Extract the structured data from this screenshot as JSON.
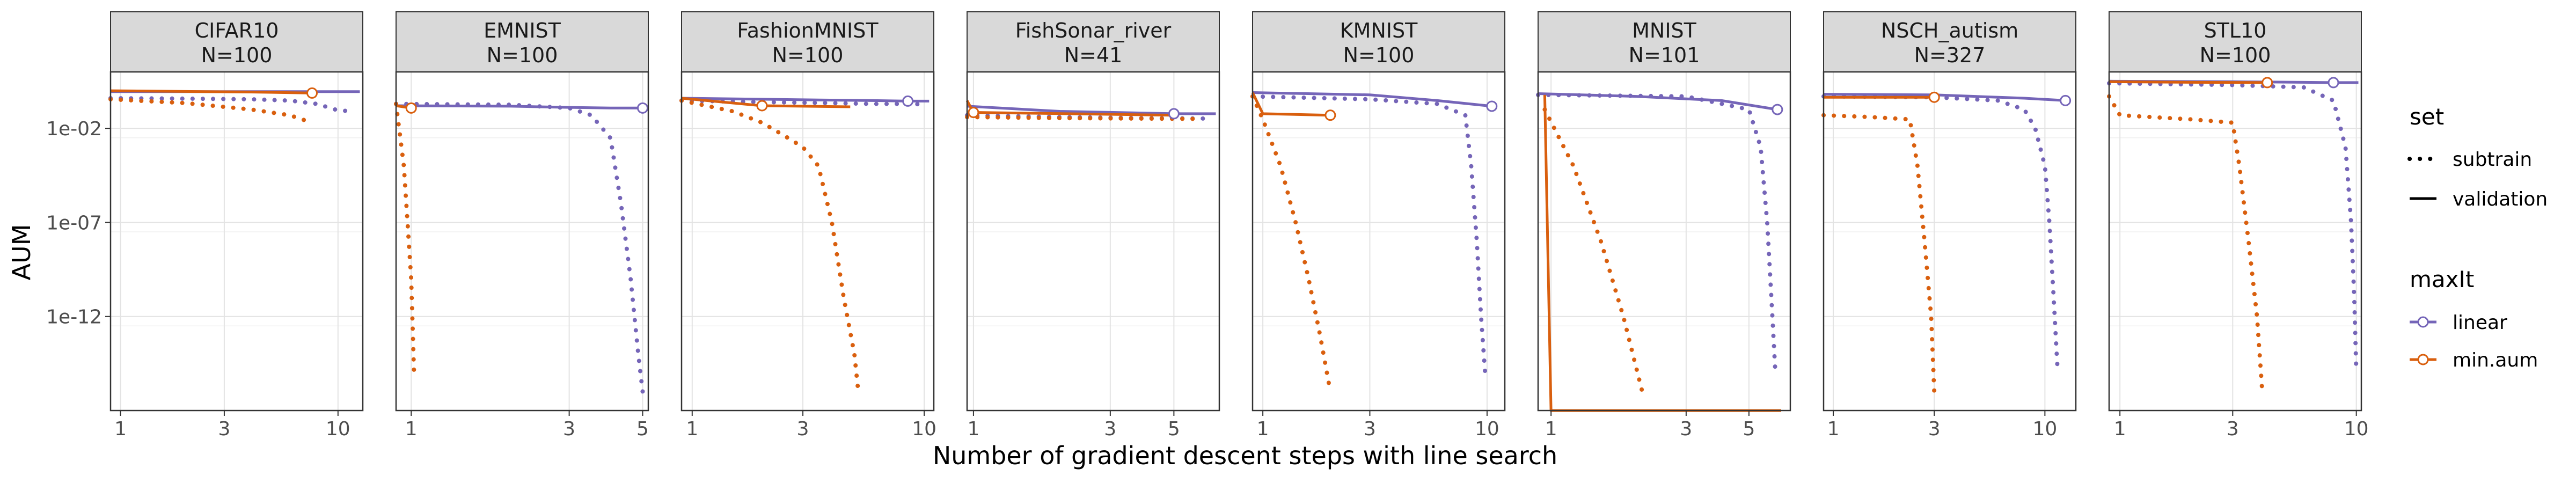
{
  "chart_data": {
    "type": "line",
    "xlabel": "Number of gradient descent steps with line search",
    "ylabel": "AUM",
    "y_scale": "log",
    "x_scale": "log",
    "y_ticks": [
      0.01,
      1e-07,
      1e-12
    ],
    "y_tick_labels": [
      "1e-02",
      "1e-07",
      "1e-12"
    ],
    "ylim": [
      1e-17,
      10
    ],
    "legend": {
      "set_title": "set",
      "set_entries": [
        {
          "label": "subtrain",
          "style": "dotted"
        },
        {
          "label": "validation",
          "style": "solid"
        }
      ],
      "maxit_title": "maxIt",
      "maxit_entries": [
        {
          "label": "linear",
          "color": "#7565b8"
        },
        {
          "label": "min.aum",
          "color": "#d95f0e"
        }
      ]
    },
    "colors": {
      "linear": "#7565b8",
      "min.aum": "#d95f0e"
    },
    "panels": [
      {
        "title": "CIFAR10",
        "subtitle": "N=100",
        "xlim": [
          0.9,
          13
        ],
        "x_ticks": [
          1,
          3,
          10
        ],
        "x_tick_labels": [
          "1",
          "3",
          "10"
        ],
        "lines": [
          {
            "maxit": "linear",
            "set": "subtrain",
            "x": [
              0.9,
              2,
              4,
              6,
              8,
              10,
              12
            ],
            "y": [
              0.4,
              0.38,
              0.35,
              0.3,
              0.2,
              0.09,
              0.08
            ]
          },
          {
            "maxit": "linear",
            "set": "validation",
            "x": [
              0.9,
              4,
              8,
              12.6
            ],
            "y": [
              0.9,
              0.9,
              0.9,
              0.9
            ]
          },
          {
            "maxit": "min.aum",
            "set": "subtrain",
            "x": [
              0.9,
              2,
              4,
              6,
              7.6
            ],
            "y": [
              0.35,
              0.22,
              0.1,
              0.05,
              0.02
            ]
          },
          {
            "maxit": "min.aum",
            "set": "validation",
            "x": [
              0.9,
              4,
              7.6
            ],
            "y": [
              1.0,
              0.85,
              0.75
            ]
          }
        ],
        "points": [
          {
            "maxit": "min.aum",
            "x": 7.6,
            "y": 0.75
          }
        ]
      },
      {
        "title": "EMNIST",
        "subtitle": "N=100",
        "xlim": [
          0.9,
          5.2
        ],
        "x_ticks": [
          1,
          3,
          5
        ],
        "x_tick_labels": [
          "1",
          "3",
          "5"
        ],
        "lines": [
          {
            "maxit": "linear",
            "set": "subtrain",
            "x": [
              0.9,
              2,
              3,
              3.5,
              4,
              4.3,
              4.6,
              4.85,
              5
            ],
            "y": [
              0.2,
              0.18,
              0.12,
              0.05,
              0.003,
              1e-06,
              1e-10,
              1e-14,
              1e-16
            ]
          },
          {
            "maxit": "linear",
            "set": "validation",
            "x": [
              0.9,
              2,
              3,
              4,
              5
            ],
            "y": [
              0.16,
              0.15,
              0.13,
              0.12,
              0.12
            ]
          },
          {
            "maxit": "min.aum",
            "set": "subtrain",
            "x": [
              0.9,
              0.95,
              1,
              1.02
            ],
            "y": [
              0.2,
              0.0001,
              1e-10,
              1e-15
            ]
          },
          {
            "maxit": "min.aum",
            "set": "validation",
            "x": [
              0.9,
              1
            ],
            "y": [
              0.16,
              0.12
            ]
          }
        ],
        "points": [
          {
            "maxit": "linear",
            "x": 5,
            "y": 0.12
          },
          {
            "maxit": "min.aum",
            "x": 1,
            "y": 0.12
          }
        ]
      },
      {
        "title": "FashionMNIST",
        "subtitle": "N=100",
        "xlim": [
          0.9,
          11
        ],
        "x_ticks": [
          1,
          3,
          10
        ],
        "x_tick_labels": [
          "1",
          "3",
          "10"
        ],
        "lines": [
          {
            "maxit": "linear",
            "set": "subtrain",
            "x": [
              0.9,
              2,
              4,
              6,
              8,
              10
            ],
            "y": [
              0.3,
              0.25,
              0.22,
              0.2,
              0.2,
              0.19
            ]
          },
          {
            "maxit": "linear",
            "set": "validation",
            "x": [
              0.9,
              3,
              6,
              8.5,
              10.5
            ],
            "y": [
              0.4,
              0.33,
              0.3,
              0.28,
              0.28
            ]
          },
          {
            "maxit": "min.aum",
            "set": "subtrain",
            "x": [
              0.9,
              1.5,
              2,
              2.5,
              3,
              3.5,
              4,
              4.5,
              5,
              5.2
            ],
            "y": [
              0.3,
              0.08,
              0.02,
              0.004,
              0.001,
              0.0001,
              1e-07,
              1e-11,
              1e-14,
              1e-16
            ]
          },
          {
            "maxit": "min.aum",
            "set": "validation",
            "x": [
              0.9,
              2,
              4.8
            ],
            "y": [
              0.4,
              0.16,
              0.14
            ]
          }
        ],
        "points": [
          {
            "maxit": "linear",
            "x": 8.5,
            "y": 0.28
          },
          {
            "maxit": "min.aum",
            "x": 2,
            "y": 0.16
          }
        ]
      },
      {
        "title": "FishSonar_river",
        "subtitle": "N=41",
        "xlim": [
          0.95,
          7.2
        ],
        "x_ticks": [
          1,
          3,
          5
        ],
        "x_tick_labels": [
          "1",
          "3",
          "5"
        ],
        "lines": [
          {
            "maxit": "linear",
            "set": "subtrain",
            "x": [
              0.95,
              2,
              4,
              6.8
            ],
            "y": [
              0.05,
              0.04,
              0.035,
              0.033
            ]
          },
          {
            "maxit": "linear",
            "set": "validation",
            "x": [
              0.95,
              2,
              4,
              5,
              7
            ],
            "y": [
              0.15,
              0.08,
              0.065,
              0.06,
              0.06
            ]
          },
          {
            "maxit": "min.aum",
            "set": "subtrain",
            "x": [
              0.95,
              2,
              4,
              6
            ],
            "y": [
              0.04,
              0.035,
              0.033,
              0.032
            ]
          },
          {
            "maxit": "min.aum",
            "set": "validation",
            "x": [
              0.95,
              1,
              5
            ],
            "y": [
              0.3,
              0.07,
              0.05
            ]
          }
        ],
        "points": [
          {
            "maxit": "linear",
            "x": 5,
            "y": 0.06
          },
          {
            "maxit": "min.aum",
            "x": 1,
            "y": 0.07
          }
        ]
      },
      {
        "title": "KMNIST",
        "subtitle": "N=100",
        "xlim": [
          0.9,
          12
        ],
        "x_ticks": [
          1,
          3,
          10
        ],
        "x_tick_labels": [
          "1",
          "3",
          "10"
        ],
        "lines": [
          {
            "maxit": "linear",
            "set": "subtrain",
            "x": [
              0.9,
              3,
              6,
              8,
              8.5,
              9,
              9.4,
              9.8
            ],
            "y": [
              0.5,
              0.35,
              0.2,
              0.05,
              0.0001,
              1e-08,
              1e-12,
              1e-15
            ]
          },
          {
            "maxit": "linear",
            "set": "validation",
            "x": [
              0.9,
              3,
              6,
              10.5
            ],
            "y": [
              0.8,
              0.6,
              0.3,
              0.15
            ]
          },
          {
            "maxit": "min.aum",
            "set": "subtrain",
            "x": [
              0.9,
              1,
              1.2,
              1.4,
              1.6,
              1.8,
              2
            ],
            "y": [
              0.5,
              0.03,
              0.0001,
              1e-07,
              1e-10,
              1e-13,
              1e-16
            ]
          },
          {
            "maxit": "min.aum",
            "set": "validation",
            "x": [
              0.9,
              1,
              2
            ],
            "y": [
              0.8,
              0.06,
              0.05
            ]
          }
        ],
        "points": [
          {
            "maxit": "linear",
            "x": 10.5,
            "y": 0.15
          },
          {
            "maxit": "min.aum",
            "x": 2,
            "y": 0.05
          }
        ]
      },
      {
        "title": "MNIST",
        "subtitle": "N=101",
        "xlim": [
          0.9,
          7
        ],
        "x_ticks": [
          1,
          3,
          5
        ],
        "x_tick_labels": [
          "1",
          "3",
          "5"
        ],
        "lines": [
          {
            "maxit": "linear",
            "set": "subtrain",
            "x": [
              0.9,
              3,
              5,
              5.5,
              5.8,
              6,
              6.2
            ],
            "y": [
              0.6,
              0.5,
              0.1,
              0.001,
              1e-07,
              1e-11,
              1e-15
            ]
          },
          {
            "maxit": "linear",
            "set": "validation",
            "x": [
              0.9,
              2,
              4,
              6.3
            ],
            "y": [
              0.7,
              0.5,
              0.3,
              0.1
            ]
          },
          {
            "maxit": "min.aum",
            "set": "subtrain",
            "x": [
              0.95,
              1.2,
              1.5,
              1.8,
              2.1
            ],
            "y": [
              0.1,
              0.0001,
              1e-08,
              1e-12,
              1e-16
            ]
          },
          {
            "maxit": "min.aum",
            "set": "validation",
            "x": [
              0.95,
              1,
              1.2,
              1.5,
              2,
              3,
              4,
              6.5
            ],
            "y": [
              0.6,
              1e-17,
              1e-17,
              1e-17,
              1e-17,
              1e-17,
              1e-17,
              1e-17
            ]
          }
        ],
        "points": [
          {
            "maxit": "linear",
            "x": 6.3,
            "y": 0.1
          }
        ]
      },
      {
        "title": "NSCH_autism",
        "subtitle": "N=327",
        "xlim": [
          0.9,
          14
        ],
        "x_ticks": [
          1,
          3,
          10
        ],
        "x_tick_labels": [
          "1",
          "3",
          "10"
        ],
        "lines": [
          {
            "maxit": "linear",
            "set": "subtrain",
            "x": [
              0.9,
              3,
              6,
              8,
              9,
              10,
              10.5,
              11,
              11.5
            ],
            "y": [
              0.5,
              0.45,
              0.3,
              0.1,
              0.01,
              0.0001,
              1e-07,
              1e-11,
              1e-15
            ]
          },
          {
            "maxit": "linear",
            "set": "validation",
            "x": [
              0.9,
              3,
              8,
              12.5
            ],
            "y": [
              0.65,
              0.6,
              0.4,
              0.3
            ]
          },
          {
            "maxit": "min.aum",
            "set": "subtrain",
            "x": [
              0.9,
              1.5,
              2.3,
              2.5,
              2.7,
              2.9,
              3
            ],
            "y": [
              0.05,
              0.04,
              0.03,
              0.0001,
              1e-08,
              1e-12,
              1e-16
            ]
          },
          {
            "maxit": "min.aum",
            "set": "validation",
            "x": [
              0.9,
              3
            ],
            "y": [
              0.45,
              0.45
            ]
          }
        ],
        "points": [
          {
            "maxit": "linear",
            "x": 12.5,
            "y": 0.3
          },
          {
            "maxit": "min.aum",
            "x": 3,
            "y": 0.45
          }
        ]
      },
      {
        "title": "STL10",
        "subtitle": "N=100",
        "xlim": [
          0.9,
          10.5
        ],
        "x_ticks": [
          1,
          3,
          10
        ],
        "x_tick_labels": [
          "1",
          "3",
          "10"
        ],
        "lines": [
          {
            "maxit": "linear",
            "set": "subtrain",
            "x": [
              0.9,
              3,
              6,
              8,
              9,
              9.5,
              9.8,
              10
            ],
            "y": [
              2.5,
              2.0,
              1.5,
              0.3,
              0.001,
              1e-07,
              1e-11,
              1e-15
            ]
          },
          {
            "maxit": "linear",
            "set": "validation",
            "x": [
              0.9,
              3,
              6,
              8,
              10.2
            ],
            "y": [
              3.2,
              3.0,
              2.8,
              2.7,
              2.7
            ]
          },
          {
            "maxit": "min.aum",
            "set": "subtrain",
            "x": [
              0.9,
              1,
              2,
              3,
              3.2,
              3.5,
              3.8,
              4
            ],
            "y": [
              0.5,
              0.05,
              0.03,
              0.02,
              0.0001,
              1e-08,
              1e-12,
              1e-16
            ]
          },
          {
            "maxit": "min.aum",
            "set": "validation",
            "x": [
              0.9,
              2,
              4.2
            ],
            "y": [
              3.0,
              2.8,
              2.7
            ]
          }
        ],
        "points": [
          {
            "maxit": "linear",
            "x": 8,
            "y": 2.7
          },
          {
            "maxit": "min.aum",
            "x": 4.2,
            "y": 2.7
          }
        ]
      }
    ]
  }
}
